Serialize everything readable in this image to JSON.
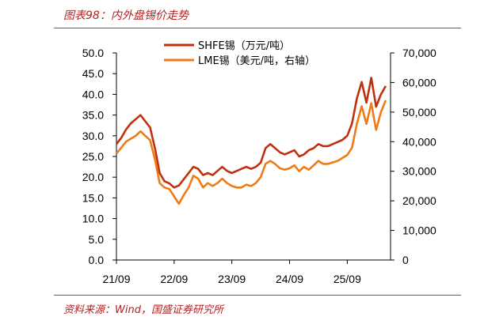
{
  "header": {
    "title": "图表98：内外盘锡价走势"
  },
  "footer": {
    "source": "资料来源：Wind，国盛证券研究所"
  },
  "chart_data": {
    "type": "line",
    "title": "",
    "xlabel": "",
    "ylabel": "",
    "x_ticks": [
      "21/09",
      "22/09",
      "23/09",
      "24/09",
      "25/09"
    ],
    "y_left": {
      "ticks": [
        "0.0",
        "5.0",
        "10.0",
        "15.0",
        "20.0",
        "25.0",
        "30.0",
        "35.0",
        "40.0",
        "45.0",
        "50.0"
      ],
      "ylim": [
        0,
        50
      ]
    },
    "y_right": {
      "ticks": [
        "0",
        "10,000",
        "20,000",
        "30,000",
        "40,000",
        "50,000",
        "60,000",
        "70,000"
      ],
      "ylim": [
        0,
        70000
      ]
    },
    "legend_position": "top",
    "grid": false,
    "series": [
      {
        "name": "SHFE锡（万元/吨）",
        "axis": "left",
        "color": "#c0300f",
        "points": [
          [
            "2021-09",
            28.0
          ],
          [
            "2021-10",
            29.5
          ],
          [
            "2021-11",
            31.5
          ],
          [
            "2021-12",
            33.0
          ],
          [
            "2022-01",
            34.0
          ],
          [
            "2022-02",
            35.0
          ],
          [
            "2022-03",
            33.5
          ],
          [
            "2022-04",
            32.0
          ],
          [
            "2022-05",
            27.0
          ],
          [
            "2022-06",
            21.0
          ],
          [
            "2022-07",
            19.0
          ],
          [
            "2022-08",
            18.5
          ],
          [
            "2022-09",
            17.5
          ],
          [
            "2022-10",
            18.0
          ],
          [
            "2022-11",
            19.5
          ],
          [
            "2022-12",
            21.0
          ],
          [
            "2023-01",
            22.5
          ],
          [
            "2023-02",
            22.0
          ],
          [
            "2023-03",
            20.5
          ],
          [
            "2023-04",
            21.0
          ],
          [
            "2023-05",
            20.5
          ],
          [
            "2023-06",
            21.5
          ],
          [
            "2023-07",
            22.5
          ],
          [
            "2023-08",
            21.5
          ],
          [
            "2023-09",
            21.0
          ],
          [
            "2023-10",
            21.5
          ],
          [
            "2023-11",
            22.0
          ],
          [
            "2023-12",
            22.5
          ],
          [
            "2024-01",
            22.0
          ],
          [
            "2024-02",
            22.5
          ],
          [
            "2024-03",
            23.5
          ],
          [
            "2024-04",
            27.0
          ],
          [
            "2024-05",
            28.0
          ],
          [
            "2024-06",
            27.0
          ],
          [
            "2024-07",
            26.0
          ],
          [
            "2024-08",
            25.5
          ],
          [
            "2024-09",
            26.0
          ],
          [
            "2024-10",
            26.5
          ],
          [
            "2024-11",
            25.0
          ],
          [
            "2024-12",
            25.5
          ],
          [
            "2025-01",
            26.5
          ],
          [
            "2025-02",
            27.0
          ],
          [
            "2025-03",
            28.0
          ],
          [
            "2025-04",
            27.5
          ],
          [
            "2025-05",
            27.5
          ],
          [
            "2025-06",
            28.0
          ],
          [
            "2025-07",
            28.5
          ],
          [
            "2025-08",
            29.0
          ],
          [
            "2025-09",
            30.0
          ],
          [
            "2025-10",
            33.0
          ],
          [
            "2025-11",
            39.0
          ],
          [
            "2025-12",
            43.0
          ],
          [
            "2026-01",
            38.0
          ],
          [
            "2026-02",
            44.0
          ],
          [
            "2026-03",
            37.0
          ],
          [
            "2026-04",
            40.0
          ],
          [
            "2026-05",
            42.0
          ]
        ]
      },
      {
        "name": "LME锡（美元/吨，右轴）",
        "axis": "right",
        "color": "#f07a14",
        "points": [
          [
            "2021-09",
            36000
          ],
          [
            "2021-10",
            38000
          ],
          [
            "2021-11",
            40000
          ],
          [
            "2021-12",
            41000
          ],
          [
            "2022-01",
            42000
          ],
          [
            "2022-02",
            43500
          ],
          [
            "2022-03",
            42000
          ],
          [
            "2022-04",
            40500
          ],
          [
            "2022-05",
            34000
          ],
          [
            "2022-06",
            26000
          ],
          [
            "2022-07",
            24500
          ],
          [
            "2022-08",
            24000
          ],
          [
            "2022-09",
            21500
          ],
          [
            "2022-10",
            19000
          ],
          [
            "2022-11",
            22000
          ],
          [
            "2022-12",
            24500
          ],
          [
            "2023-01",
            28500
          ],
          [
            "2023-02",
            27500
          ],
          [
            "2023-03",
            24500
          ],
          [
            "2023-04",
            26000
          ],
          [
            "2023-05",
            25000
          ],
          [
            "2023-06",
            26000
          ],
          [
            "2023-07",
            27500
          ],
          [
            "2023-08",
            26000
          ],
          [
            "2023-09",
            25000
          ],
          [
            "2023-10",
            24500
          ],
          [
            "2023-11",
            24500
          ],
          [
            "2023-12",
            25500
          ],
          [
            "2024-01",
            25000
          ],
          [
            "2024-02",
            26000
          ],
          [
            "2024-03",
            28000
          ],
          [
            "2024-04",
            32500
          ],
          [
            "2024-05",
            33500
          ],
          [
            "2024-06",
            32500
          ],
          [
            "2024-07",
            31000
          ],
          [
            "2024-08",
            30500
          ],
          [
            "2024-09",
            31000
          ],
          [
            "2024-10",
            32000
          ],
          [
            "2024-11",
            30000
          ],
          [
            "2024-12",
            31500
          ],
          [
            "2025-01",
            30500
          ],
          [
            "2025-02",
            32000
          ],
          [
            "2025-03",
            33500
          ],
          [
            "2025-04",
            32500
          ],
          [
            "2025-05",
            32500
          ],
          [
            "2025-06",
            33000
          ],
          [
            "2025-07",
            33500
          ],
          [
            "2025-08",
            34500
          ],
          [
            "2025-09",
            35500
          ],
          [
            "2025-10",
            38000
          ],
          [
            "2025-11",
            46000
          ],
          [
            "2025-12",
            52000
          ],
          [
            "2026-01",
            46000
          ],
          [
            "2026-02",
            53000
          ],
          [
            "2026-03",
            44000
          ],
          [
            "2026-04",
            50000
          ],
          [
            "2026-05",
            54000
          ]
        ]
      }
    ]
  }
}
